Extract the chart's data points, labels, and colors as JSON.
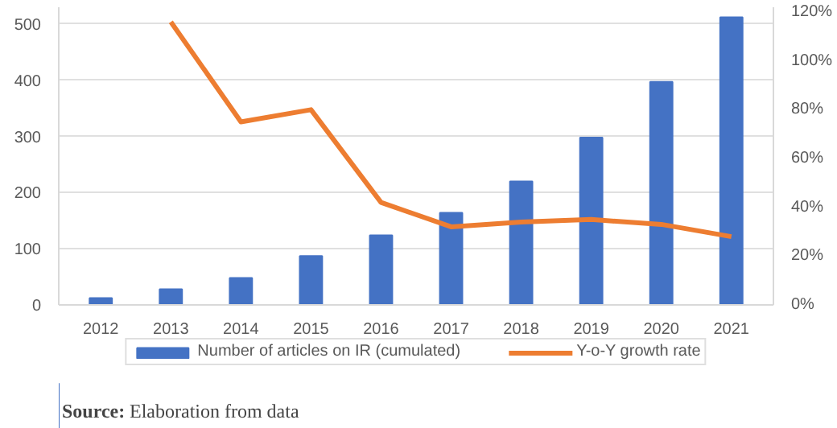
{
  "chart_data": {
    "type": "bar",
    "categories": [
      "2012",
      "2013",
      "2014",
      "2015",
      "2016",
      "2017",
      "2018",
      "2019",
      "2020",
      "2021"
    ],
    "series": [
      {
        "name": "Number of articles on IR (cumulated)",
        "color": "#4472c4",
        "values": [
          12,
          28,
          48,
          87,
          124,
          164,
          220,
          298,
          397,
          512
        ]
      },
      {
        "name": "Y-o-Y growth rate",
        "type": "line",
        "axis": "y2",
        "color": "#ed7d31",
        "values": [
          null,
          116,
          75,
          80,
          42,
          32,
          34,
          35,
          33,
          28
        ]
      }
    ],
    "ylim": [
      0,
      530
    ],
    "yticks": [
      0,
      100,
      200,
      300,
      400,
      500
    ],
    "y2lim": [
      0,
      122
    ],
    "y2ticks": [
      {
        "value": 0,
        "label": "0%"
      },
      {
        "value": 20,
        "label": "20%"
      },
      {
        "value": 40,
        "label": "40%"
      },
      {
        "value": 60,
        "label": "60%"
      },
      {
        "value": 80,
        "label": "80%"
      },
      {
        "value": 100,
        "label": "100%"
      },
      {
        "value": 120,
        "label": "120%"
      }
    ],
    "grid": "y",
    "legend": "bottom",
    "annotations": [
      "Source: Elaboration from data"
    ]
  }
}
